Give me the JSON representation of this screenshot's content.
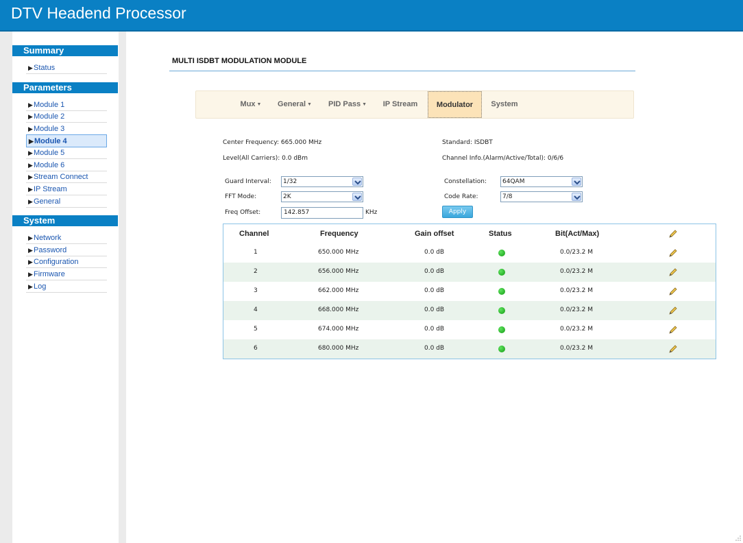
{
  "app": {
    "title": "DTV Headend Processor"
  },
  "sidebar": {
    "sections": [
      {
        "title": "Summary",
        "items": [
          "Status"
        ]
      },
      {
        "title": "Parameters",
        "items": [
          "Module 1",
          "Module 2",
          "Module 3",
          "Module 4",
          "Module 5",
          "Module 6",
          "Stream Connect",
          "IP Stream",
          "General"
        ]
      },
      {
        "title": "System",
        "items": [
          "Network",
          "Password",
          "Configuration",
          "Firmware",
          "Log"
        ]
      }
    ],
    "active_item": "Module 4"
  },
  "page": {
    "heading": "MULTI ISDBT MODULATION MODULE"
  },
  "tabs": [
    {
      "label": "Mux",
      "dropdown": true
    },
    {
      "label": "General",
      "dropdown": true
    },
    {
      "label": "PID Pass",
      "dropdown": true
    },
    {
      "label": "IP Stream",
      "dropdown": false
    },
    {
      "label": "Modulator",
      "dropdown": false,
      "active": true
    },
    {
      "label": "System",
      "dropdown": false
    }
  ],
  "info": {
    "center_frequency": "Center Frequency: 665.000 MHz",
    "level": "Level(All Carriers): 0.0 dBm",
    "standard": "Standard: ISDBT",
    "channel_info": "Channel Info.(Alarm/Active/Total): 0/6/6"
  },
  "form": {
    "guard_interval": {
      "label": "Guard Interval:",
      "value": "1/32"
    },
    "fft_mode": {
      "label": "FFT Mode:",
      "value": "2K"
    },
    "freq_offset": {
      "label": "Freq Offset:",
      "value": "142.857",
      "unit": "KHz"
    },
    "constellation": {
      "label": "Constellation:",
      "value": "64QAM"
    },
    "code_rate": {
      "label": "Code Rate:",
      "value": "7/8"
    },
    "apply_label": "Apply"
  },
  "table": {
    "headers": {
      "channel": "Channel",
      "frequency": "Frequency",
      "gain": "Gain offset",
      "status": "Status",
      "bitrate": "Bit(Act/Max)"
    },
    "rows": [
      {
        "channel": "1",
        "frequency": "650.000 MHz",
        "gain": "0.0 dB",
        "status": "ok",
        "bitrate": "0.0/23.2 M"
      },
      {
        "channel": "2",
        "frequency": "656.000 MHz",
        "gain": "0.0 dB",
        "status": "ok",
        "bitrate": "0.0/23.2 M"
      },
      {
        "channel": "3",
        "frequency": "662.000 MHz",
        "gain": "0.0 dB",
        "status": "ok",
        "bitrate": "0.0/23.2 M"
      },
      {
        "channel": "4",
        "frequency": "668.000 MHz",
        "gain": "0.0 dB",
        "status": "ok",
        "bitrate": "0.0/23.2 M"
      },
      {
        "channel": "5",
        "frequency": "674.000 MHz",
        "gain": "0.0 dB",
        "status": "ok",
        "bitrate": "0.0/23.2 M"
      },
      {
        "channel": "6",
        "frequency": "680.000 MHz",
        "gain": "0.0 dB",
        "status": "ok",
        "bitrate": "0.0/23.2 M"
      }
    ]
  },
  "icons": {
    "edit": "pencil-icon",
    "status_ok": "green-dot-icon",
    "dropdown": "chevron-down-icon",
    "nav": "triangle-right-icon"
  },
  "colors": {
    "brand": "#0a80c4",
    "status_ok": "#1fb31f",
    "active_tab": "#fce3b8",
    "alt_row": "#eaf3ec"
  }
}
